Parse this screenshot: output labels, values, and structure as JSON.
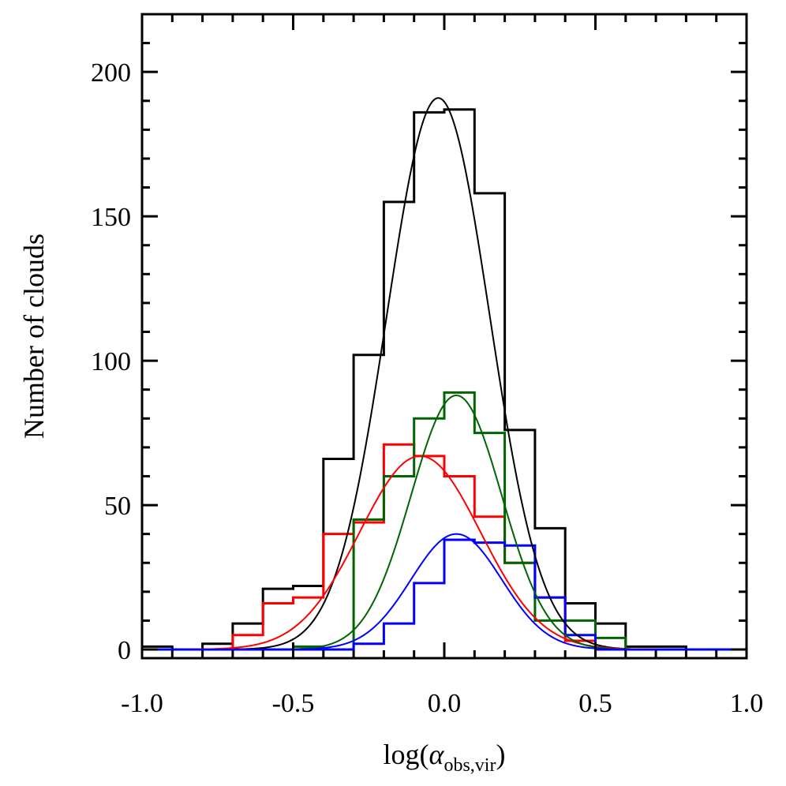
{
  "chart_data": {
    "type": "histogram",
    "xlabel": {
      "prefix": "log(",
      "symbol": "α",
      "subscript": "obs,vir",
      "suffix": ")"
    },
    "ylabel": "Number of clouds",
    "xlim": [
      -1.0,
      1.0
    ],
    "ylim": [
      -3,
      220
    ],
    "x_ticks": [
      -1.0,
      -0.5,
      0.0,
      0.5,
      1.0
    ],
    "x_tick_labels": [
      "-1.0",
      "-0.5",
      "0.0",
      "0.5",
      "1.0"
    ],
    "y_ticks": [
      0,
      50,
      100,
      150,
      200
    ],
    "y_tick_labels": [
      "0",
      "50",
      "100",
      "150",
      "200"
    ],
    "x_minor_step": 0.1,
    "y_minor_step": 10,
    "grid": false,
    "legend": "none",
    "bin_edges": [
      -1.0,
      -0.9,
      -0.8,
      -0.7,
      -0.6,
      -0.5,
      -0.4,
      -0.3,
      -0.2,
      -0.1,
      0.0,
      0.1,
      0.2,
      0.3,
      0.4,
      0.5,
      0.6,
      0.7,
      0.8,
      0.9,
      1.0
    ],
    "series": [
      {
        "color": "#000000",
        "counts": [
          1,
          0,
          2,
          9,
          21,
          22,
          66,
          102,
          155,
          186,
          187,
          158,
          76,
          42,
          16,
          9,
          1,
          1,
          0,
          0
        ],
        "fit": {
          "amplitude": 191,
          "mean": -0.02,
          "sigma": 0.17
        }
      },
      {
        "color": "#ff0000",
        "counts": [
          0,
          0,
          0,
          5,
          16,
          18,
          40,
          44,
          71,
          67,
          60,
          46,
          30,
          18,
          3,
          0,
          0,
          0,
          0,
          0
        ],
        "fit": {
          "amplitude": 67,
          "mean": -0.08,
          "sigma": 0.2
        }
      },
      {
        "color": "#006400",
        "counts": [
          0,
          0,
          0,
          0,
          0,
          1,
          0,
          45,
          60,
          80,
          89,
          75,
          30,
          10,
          10,
          4,
          0,
          0,
          0,
          0
        ],
        "fit": {
          "amplitude": 88,
          "mean": 0.04,
          "sigma": 0.15
        }
      },
      {
        "color": "#0000ff",
        "counts": [
          0,
          0,
          0,
          0,
          0,
          0,
          0,
          2,
          9,
          23,
          38,
          37,
          36,
          18,
          5,
          0,
          0,
          0,
          0,
          0
        ],
        "fit": {
          "amplitude": 40,
          "mean": 0.04,
          "sigma": 0.15
        }
      }
    ]
  }
}
